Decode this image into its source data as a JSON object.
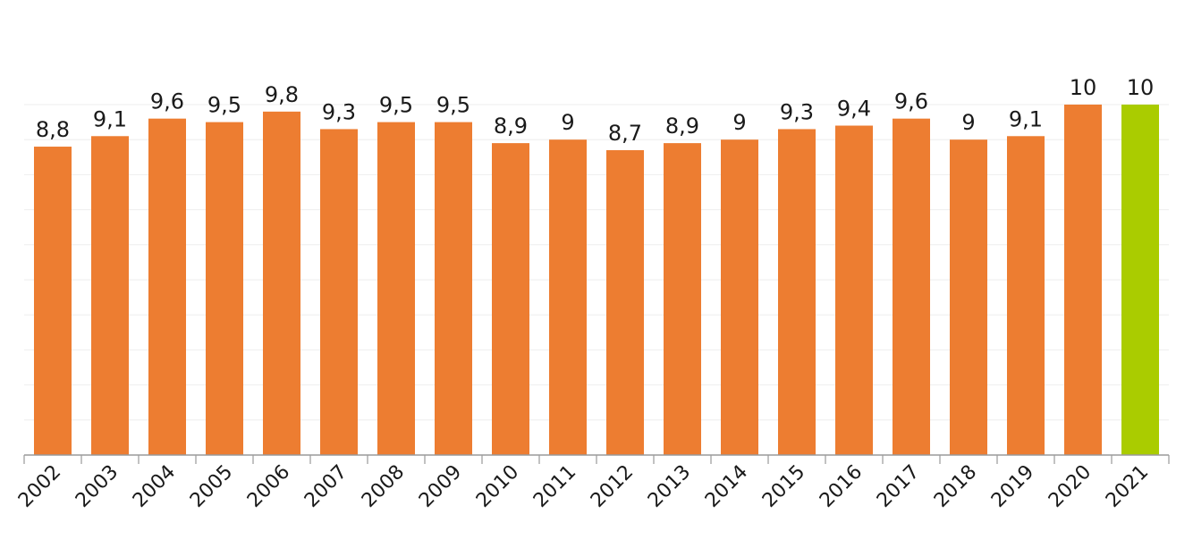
{
  "chart_data": {
    "type": "bar",
    "title": "",
    "xlabel": "",
    "ylabel": "",
    "categories": [
      "2002",
      "2003",
      "2004",
      "2005",
      "2006",
      "2007",
      "2008",
      "2009",
      "2010",
      "2011",
      "2012",
      "2013",
      "2014",
      "2015",
      "2016",
      "2017",
      "2018",
      "2019",
      "2020",
      "2021"
    ],
    "values": [
      8.8,
      9.1,
      9.6,
      9.5,
      9.8,
      9.3,
      9.5,
      9.5,
      8.9,
      9,
      8.7,
      8.9,
      9,
      9.3,
      9.4,
      9.6,
      9,
      9.1,
      10,
      10
    ],
    "value_labels": [
      "8,8",
      "9,1",
      "9,6",
      "9,5",
      "9,8",
      "9,3",
      "9,5",
      "9,5",
      "8,9",
      "9",
      "8,7",
      "8,9",
      "9",
      "9,3",
      "9,4",
      "9,6",
      "9",
      "9,1",
      "10",
      "10"
    ],
    "ylim": [
      0,
      10
    ],
    "grid": true,
    "gridline_count": 10,
    "legend": "none",
    "colors": {
      "default_bar": "#ED7D31",
      "highlight_bar": "#AACC00",
      "gridline": "#EEEEEE",
      "axis": "#9A9A9A"
    },
    "highlight_category": "2021"
  }
}
